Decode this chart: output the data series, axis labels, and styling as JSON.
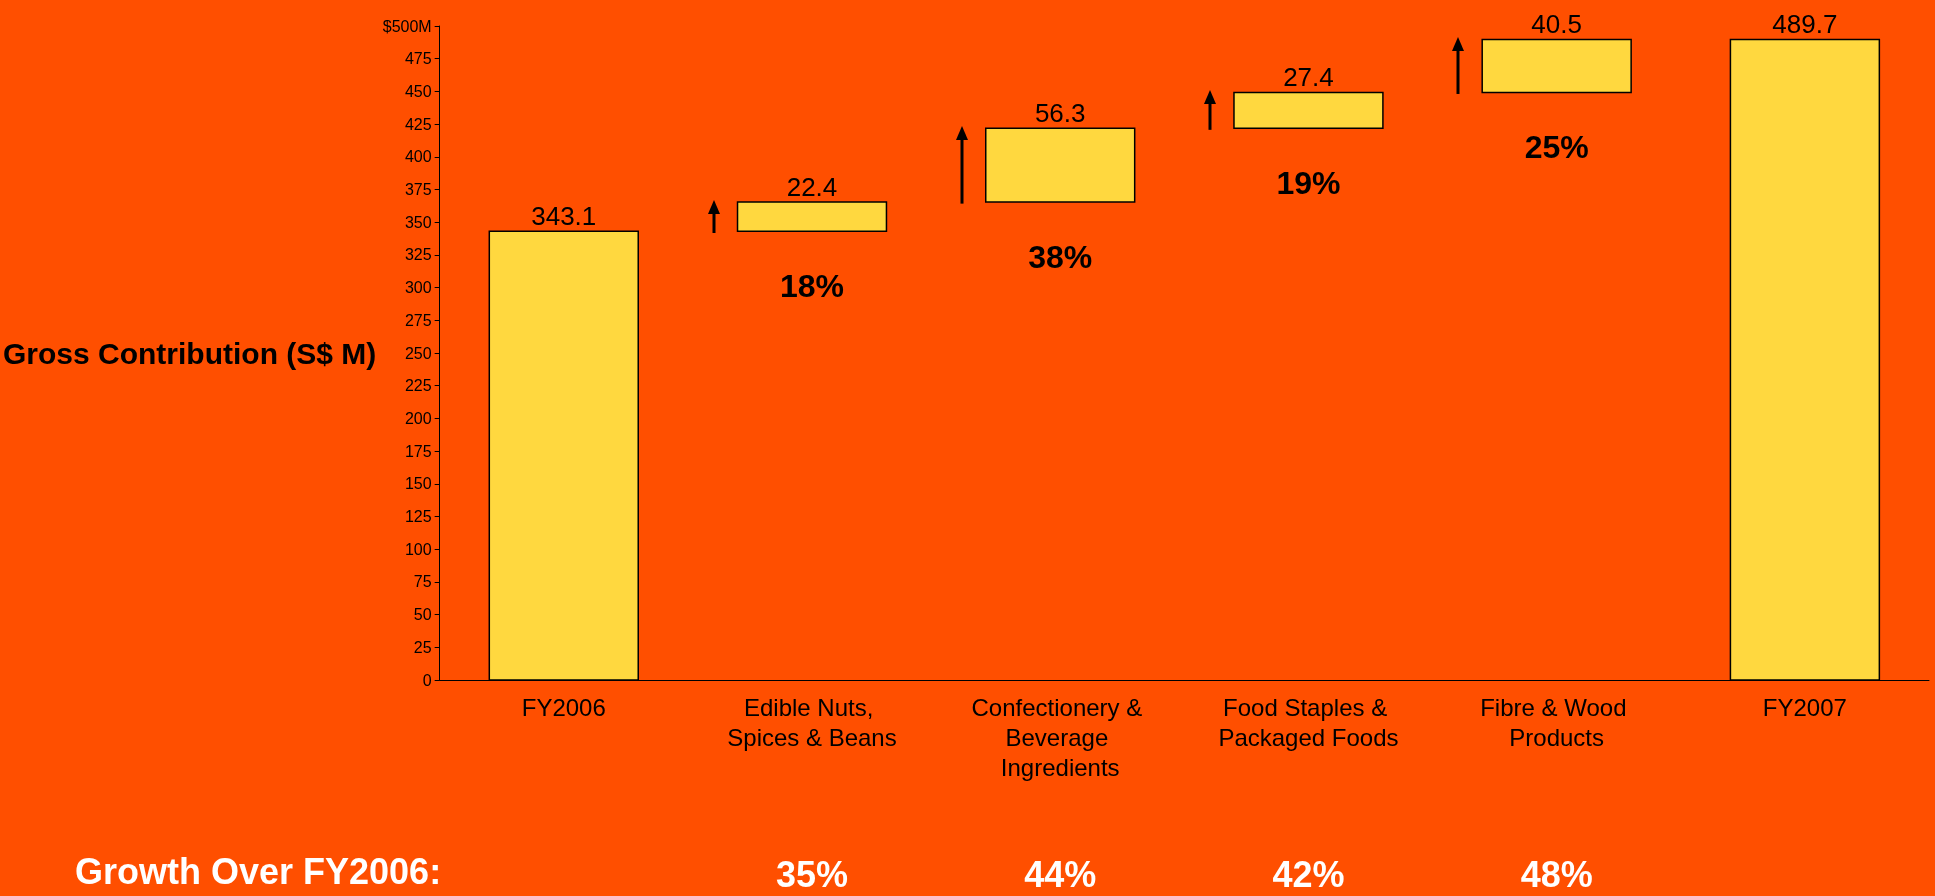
{
  "chart_data": {
    "type": "bar",
    "ylabel": "Gross Contribution (S$ M)",
    "categories": [
      "FY2006",
      "Edible Nuts, Spices & Beans",
      "Confectionery & Beverage Ingredients",
      "Food Staples & Packaged Foods",
      "Fibre & Wood Products",
      "FY2007"
    ],
    "values": [
      343.1,
      22.4,
      56.3,
      27.4,
      40.5,
      489.7
    ],
    "base": [
      0,
      343.1,
      365.5,
      421.8,
      449.2,
      0
    ],
    "color": "#ffd83f",
    "data_labels": true,
    "ylim": [
      0,
      500
    ],
    "yticks": [
      0,
      25,
      50,
      75,
      100,
      125,
      150,
      175,
      200,
      225,
      250,
      275,
      300,
      325,
      350,
      375,
      400,
      425,
      450,
      475,
      {
        "value": 500,
        "label": "$500M"
      }
    ],
    "grid": false,
    "annotations": [
      "18%",
      "38%",
      "19%",
      "25%",
      "Growth Over FY2006:",
      "35%",
      "44%",
      "42%",
      "48%"
    ]
  }
}
